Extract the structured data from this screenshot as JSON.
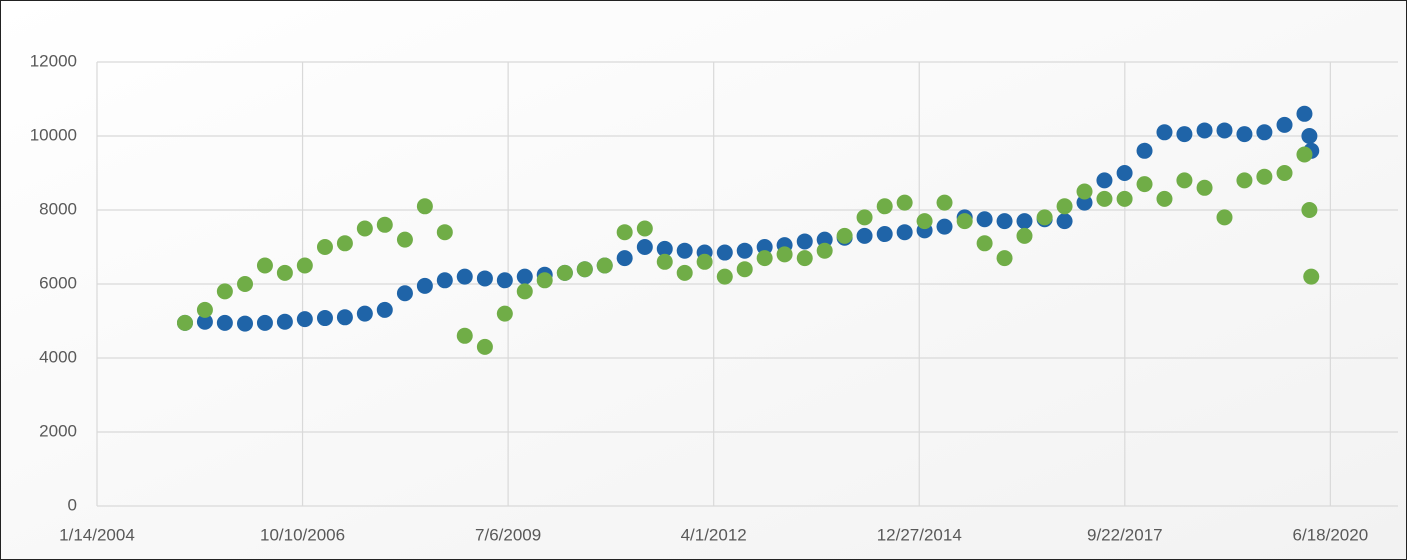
{
  "chart_data": {
    "type": "scatter",
    "x": [
      38428,
      38525,
      38622,
      38720,
      38817,
      38914,
      39011,
      39109,
      39206,
      39303,
      39400,
      39498,
      39595,
      39692,
      39789,
      39887,
      39984,
      40081,
      40178,
      40276,
      40373,
      40470,
      40567,
      40665,
      40762,
      40859,
      40956,
      41054,
      41151,
      41248,
      41345,
      41443,
      41540,
      41637,
      41734,
      41832,
      41929,
      42026,
      42123,
      42221,
      42318,
      42415,
      42512,
      42610,
      42707,
      42804,
      42901,
      42999,
      43096,
      43193,
      43290,
      43388,
      43485,
      43582,
      43679,
      43777,
      43874,
      43898,
      43907
    ],
    "series": [
      {
        "color": "#1f64a8",
        "values": [
          4950,
          4980,
          4950,
          4930,
          4950,
          4980,
          5050,
          5080,
          5100,
          5200,
          5300,
          5750,
          5950,
          6100,
          6200,
          6150,
          6100,
          6200,
          6250,
          6300,
          6400,
          6500,
          6700,
          7000,
          6950,
          6900,
          6850,
          6850,
          6900,
          7000,
          7050,
          7150,
          7200,
          7250,
          7300,
          7350,
          7400,
          7450,
          7550,
          7800,
          7750,
          7700,
          7700,
          7750,
          7700,
          8200,
          8800,
          9000,
          9600,
          10100,
          10050,
          10150,
          10150,
          10050,
          10100,
          10300,
          10600,
          10000,
          9600
        ]
      },
      {
        "color": "#70ad47",
        "values": [
          4950,
          5300,
          5800,
          6000,
          6500,
          6300,
          6500,
          7000,
          7100,
          7500,
          7600,
          7200,
          8100,
          7400,
          4600,
          4300,
          5200,
          5800,
          6100,
          6300,
          6400,
          6500,
          7400,
          7500,
          6600,
          6300,
          6600,
          6200,
          6400,
          6700,
          6800,
          6700,
          6900,
          7300,
          7800,
          8100,
          8200,
          7700,
          8200,
          7700,
          7100,
          6700,
          7300,
          7800,
          8100,
          8500,
          8300,
          8300,
          8700,
          8300,
          8800,
          8600,
          7800,
          8800,
          8900,
          9000,
          9500,
          8000,
          6200
        ]
      }
    ],
    "xlim": [
      38000,
      44329
    ],
    "xticks": [
      {
        "value": 38000,
        "label": "1/14/2004"
      },
      {
        "value": 39000,
        "label": "10/10/2006"
      },
      {
        "value": 40000,
        "label": "7/6/2009"
      },
      {
        "value": 41000,
        "label": "4/1/2012"
      },
      {
        "value": 42000,
        "label": "12/27/2014"
      },
      {
        "value": 43000,
        "label": "9/22/2017"
      },
      {
        "value": 44000,
        "label": "6/18/2020"
      }
    ],
    "ylim": [
      0,
      12000
    ],
    "yticks": [
      0,
      2000,
      4000,
      6000,
      8000,
      10000,
      12000
    ],
    "grid": true
  }
}
